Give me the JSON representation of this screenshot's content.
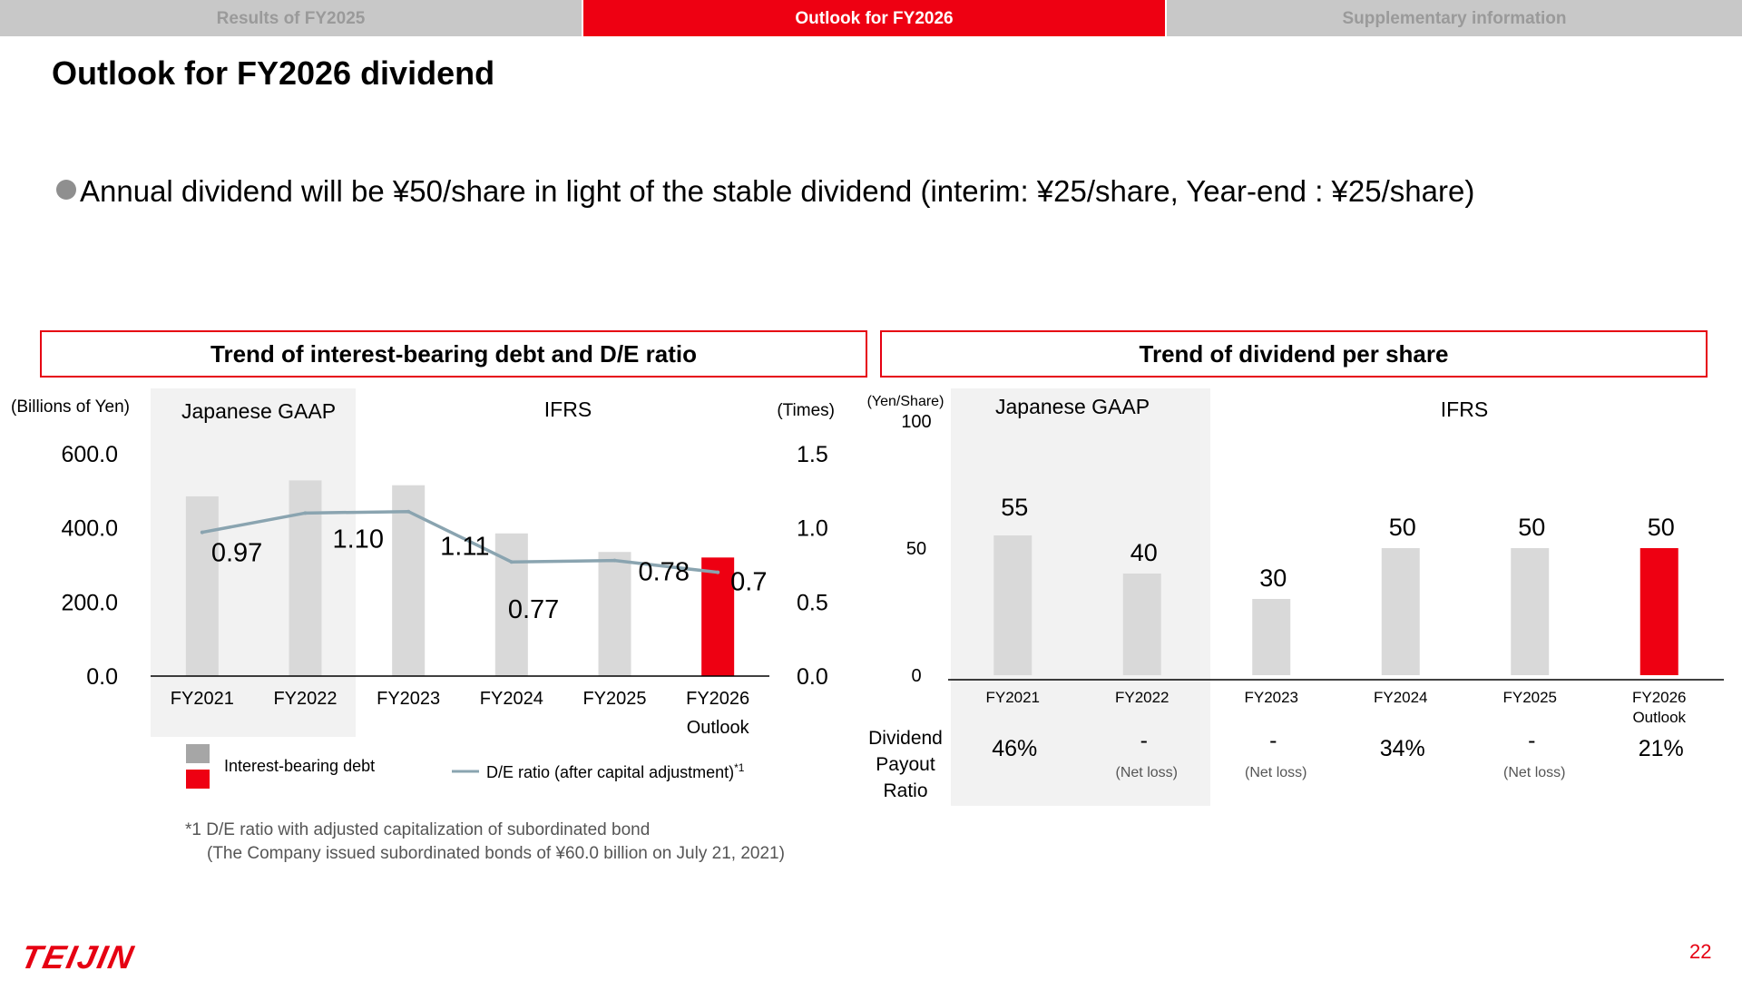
{
  "tabs": [
    "Results of FY2025",
    "Outlook for FY2026",
    "Supplementary information"
  ],
  "title": "Outlook for FY2026 dividend",
  "bullet": "Annual dividend will be ¥50/share in light of the stable dividend (interim: ¥25/share, Year-end : ¥25/share)",
  "colors": {
    "accent": "#ee0012",
    "bar_gray": "#d9d9d9",
    "line": "#8aa4b0",
    "shade": "#f2f2f2"
  },
  "left_panel": {
    "heading": "Trend of interest-bearing debt and D/E ratio",
    "y_unit_left": "(Billions of Yen)",
    "y_unit_right": "(Times)",
    "region_gaap": "Japanese GAAP",
    "region_ifrs": "IFRS",
    "legend_debt": "Interest-bearing debt",
    "legend_ratio": "D/E ratio (after capital adjustment)",
    "legend_ratio_sup": "*1",
    "footnote_1": "*1 D/E ratio with adjusted capitalization of subordinated bond",
    "footnote_2": "(The Company issued subordinated bonds of ¥60.0 billion on July 21, 2021)"
  },
  "right_panel": {
    "heading": "Trend of dividend per share",
    "y_unit": "(Yen/Share)",
    "region_gaap": "Japanese GAAP",
    "region_ifrs": "IFRS",
    "payout_label": [
      "Dividend",
      "Payout",
      "Ratio"
    ]
  },
  "chart_data": [
    {
      "type": "bar",
      "title": "Trend of interest-bearing debt and D/E ratio",
      "categories": [
        "FY2021",
        "FY2022",
        "FY2023",
        "FY2024",
        "FY2025",
        "FY2026"
      ],
      "category_sublabels": [
        "",
        "",
        "",
        "",
        "",
        "Outlook"
      ],
      "ylabel": "(Billions of Yen)",
      "y2label": "(Times)",
      "ylim": [
        0,
        600
      ],
      "y2lim": [
        0,
        1.5
      ],
      "yticks": [
        "0.0",
        "200.0",
        "400.0",
        "600.0"
      ],
      "y2ticks": [
        "0.0",
        "0.5",
        "1.0",
        "1.5"
      ],
      "series": [
        {
          "name": "Interest-bearing debt",
          "type": "bar",
          "values": [
            485,
            528,
            515,
            385,
            335,
            320
          ]
        },
        {
          "name": "D/E ratio (after capital adjustment)",
          "type": "line",
          "values": [
            0.97,
            1.1,
            1.11,
            0.77,
            0.78,
            0.7
          ],
          "labels": [
            "0.97",
            "1.10",
            "1.11",
            "0.77",
            "0.78",
            "0.7"
          ]
        }
      ],
      "highlight_index": 5,
      "legend": "bottom"
    },
    {
      "type": "bar",
      "title": "Trend of dividend per share",
      "categories": [
        "FY2021",
        "FY2022",
        "FY2023",
        "FY2024",
        "FY2025",
        "FY2026"
      ],
      "category_sublabels": [
        "",
        "",
        "",
        "",
        "",
        "Outlook"
      ],
      "ylabel": "(Yen/Share)",
      "ylim": [
        0,
        100
      ],
      "yticks": [
        "0",
        "50",
        "100"
      ],
      "values": [
        55,
        40,
        30,
        50,
        50,
        50
      ],
      "labels": [
        "55",
        "40",
        "30",
        "50",
        "50",
        "50"
      ],
      "payout_ratio": [
        "46%",
        "-",
        "-",
        "34%",
        "-",
        "21%"
      ],
      "payout_note": [
        "",
        "(Net loss)",
        "(Net loss)",
        "",
        "(Net loss)",
        ""
      ],
      "highlight_index": 5
    }
  ],
  "page_number": "22",
  "logo_text": "TEIJIN"
}
